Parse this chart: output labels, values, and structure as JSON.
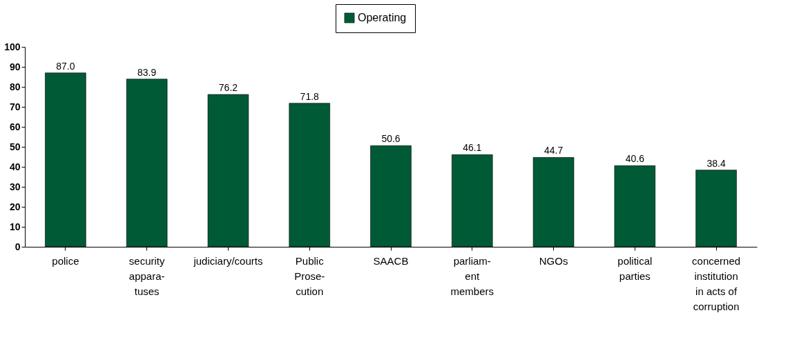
{
  "chart_data": {
    "type": "bar",
    "categories": [
      "police",
      "security\nappara-\ntuses",
      "judiciary/courts",
      "Public\nProse-\ncution",
      "SAACB",
      "parliam-\nent\nmembers",
      "NGOs",
      "political\nparties",
      "concerned\ninstitution\nin acts of\ncorruption"
    ],
    "series": [
      {
        "name": "Operating",
        "color": "#005a36",
        "values": [
          87.0,
          83.9,
          76.2,
          71.8,
          50.6,
          46.1,
          44.7,
          40.6,
          38.4
        ],
        "value_labels": [
          "87.0",
          "83.9",
          "76.2",
          "71.8",
          "50.6",
          "46.1",
          "44.7",
          "40.6",
          "38.4"
        ]
      }
    ],
    "ylim": [
      0,
      100
    ],
    "yticks": [
      0,
      10,
      20,
      30,
      40,
      50,
      60,
      70,
      80,
      90,
      100
    ],
    "grid": false,
    "legend": "top",
    "data_labels": true
  }
}
